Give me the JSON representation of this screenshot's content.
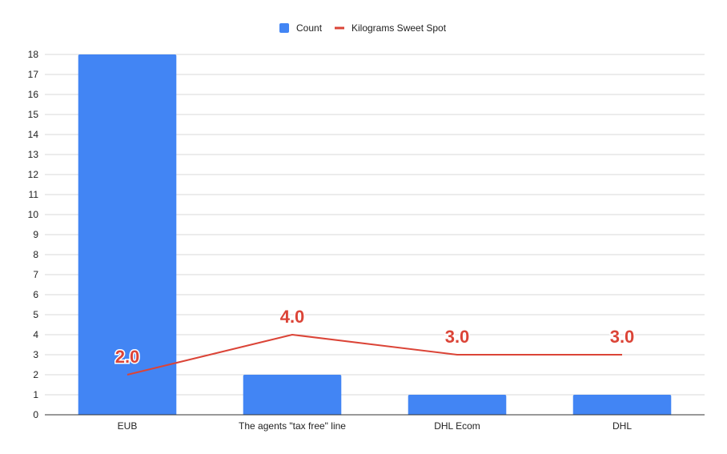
{
  "chart_data": {
    "type": "bar",
    "categories": [
      "EUB",
      "The agents \"tax free\" line",
      "DHL Ecom",
      "DHL"
    ],
    "series": [
      {
        "name": "Count",
        "type": "bar",
        "values": [
          18,
          2,
          1,
          1
        ],
        "color": "#4285f4"
      },
      {
        "name": "Kilograms Sweet Spot",
        "type": "line",
        "values": [
          2,
          4,
          3,
          3
        ],
        "color": "#db4437",
        "data_labels": [
          "2.0",
          "4.0",
          "3.0",
          "3.0"
        ]
      }
    ],
    "ylim": [
      0,
      18
    ],
    "yticks": [
      0,
      1,
      2,
      3,
      4,
      5,
      6,
      7,
      8,
      9,
      10,
      11,
      12,
      13,
      14,
      15,
      16,
      17,
      18
    ],
    "grid": true,
    "legend_position": "top-center",
    "title": "",
    "xlabel": "",
    "ylabel": ""
  }
}
